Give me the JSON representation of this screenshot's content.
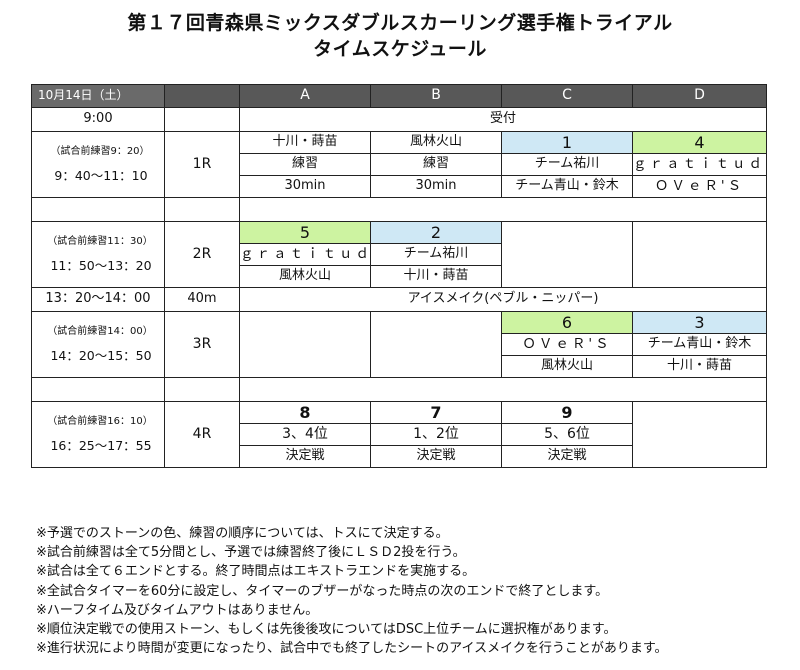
{
  "title": {
    "line1": "第１７回青森県ミックスダブルスカーリング選手権トライアル",
    "line2": "タイムスケジュール"
  },
  "header": {
    "date": "10月14日（土）",
    "sheets": [
      "A",
      "B",
      "C",
      "D"
    ]
  },
  "reception": {
    "time": "9:00",
    "label": "受付"
  },
  "round1": {
    "pre": "（試合前練習9：20）",
    "time": "9：40～11：10",
    "round": "1R",
    "a": [
      "十川・蒔苗",
      "練習",
      "30min"
    ],
    "b": [
      "風林火山",
      "練習",
      "30min"
    ],
    "c": {
      "game": "1",
      "team1": "チーム祐川",
      "team2": "チーム青山・鈴木"
    },
    "d": {
      "game": "4",
      "team1": "ｇｒａｔｉｔｕｄｅ",
      "team2": "ＯＶｅＲ'Ｓ"
    }
  },
  "round2": {
    "pre": "（試合前練習11：30）",
    "time": "11：50～13：20",
    "round": "2R",
    "a": {
      "game": "5",
      "team1": "ｇｒａｔｉｔｕｄｅ",
      "team2": "風林火山"
    },
    "b": {
      "game": "2",
      "team1": "チーム祐川",
      "team2": "十川・蒔苗"
    }
  },
  "ice": {
    "time": "13：20～14：00",
    "duration": "40m",
    "label": "アイスメイク(ペブル・ニッパー)"
  },
  "round3": {
    "pre": "（試合前練習14：00）",
    "time": "14：20～15：50",
    "round": "3R",
    "c": {
      "game": "6",
      "team1": "ＯＶｅＲ'Ｓ",
      "team2": "風林火山"
    },
    "d": {
      "game": "3",
      "team1": "チーム青山・鈴木",
      "team2": "十川・蒔苗"
    }
  },
  "round4": {
    "pre": "（試合前練習16：10）",
    "time": "16：25～17：55",
    "round": "4R",
    "a": {
      "game": "8",
      "rank": "3、4位",
      "label": "決定戦"
    },
    "b": {
      "game": "7",
      "rank": "1、2位",
      "label": "決定戦"
    },
    "c": {
      "game": "9",
      "rank": "5、6位",
      "label": "決定戦"
    }
  },
  "notes": [
    "※予選でのストーンの色、練習の順序については、トスにて決定する。",
    "※試合前練習は全て5分間とし、予選では練習終了後にＬＳＤ2投を行う。",
    "※試合は全て６エンドとする。終了時間点はエキストラエンドを実施する。",
    "※全試合タイマーを60分に設定し、タイマーのブザーがなった時点の次のエンドで終了とします。",
    "※ハーフタイム及びタイムアウトはありません。",
    "※順位決定戦での使用ストーン、もしくは先後後攻についてはDSC上位チームに選択権があります。",
    "※進行状況により時間が変更になったり、試合中でも終了したシートのアイスメイクを行うことがあります。"
  ]
}
